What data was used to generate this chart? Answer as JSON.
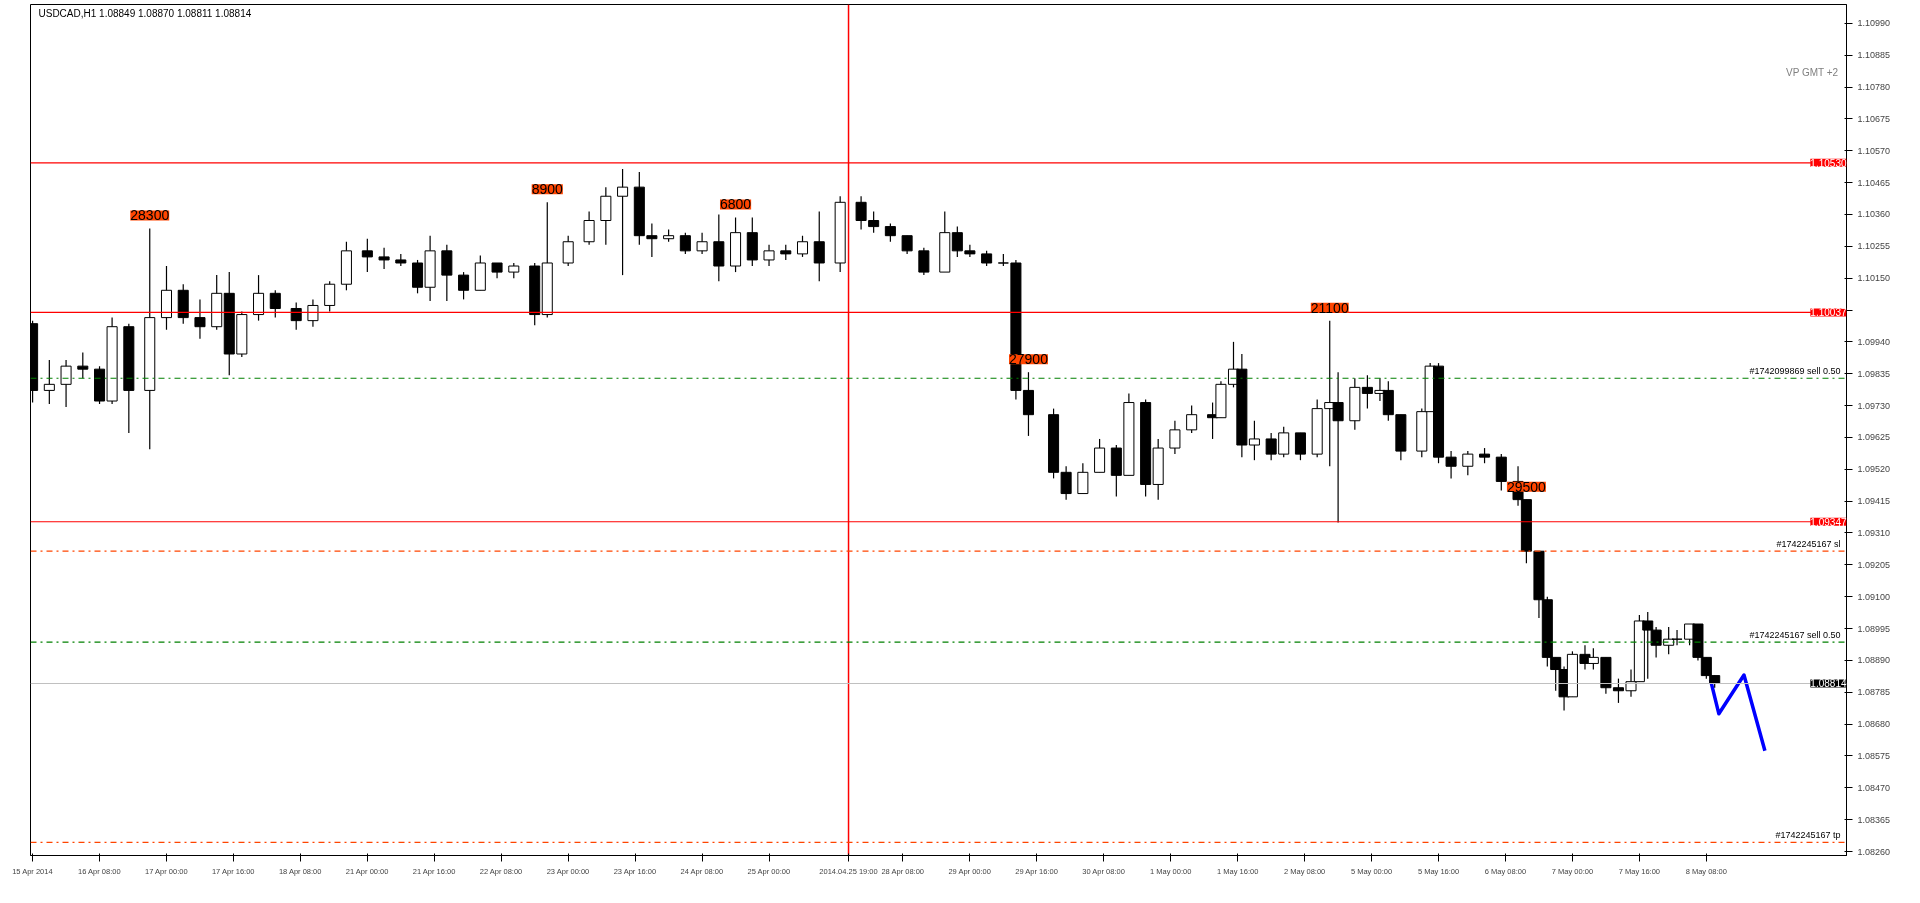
{
  "chart_data": {
    "type": "candlestick",
    "title": "USDCAD,H1  1.08849 1.08870 1.08811 1.08814",
    "categories": [
      "15 Apr 2014",
      null,
      null,
      null,
      null,
      null,
      null,
      null,
      null,
      null,
      null,
      null,
      null,
      null,
      null,
      null,
      "16 Apr 08:00",
      null,
      null,
      null,
      null,
      null,
      null,
      null,
      null,
      null,
      null,
      null,
      null,
      null,
      null,
      null,
      "17 Apr 00:00",
      null,
      null,
      null,
      null,
      null,
      null,
      null,
      null,
      null,
      null,
      null,
      null,
      null,
      null,
      null,
      "17 Apr 16:00",
      null,
      null,
      null,
      null,
      null,
      null,
      null,
      null,
      null,
      null,
      null,
      null,
      null,
      null,
      null,
      "18 Apr 08:00",
      null,
      null,
      null,
      null,
      null,
      null,
      null,
      null,
      null,
      null,
      null,
      null,
      null,
      null,
      null,
      "21 Apr 00:00",
      null,
      null,
      null,
      null,
      null,
      null,
      null,
      null,
      null,
      null,
      null,
      null,
      null,
      null,
      null,
      "21 Apr 16:00",
      null,
      null,
      null,
      null,
      null,
      null,
      null,
      null,
      null,
      null,
      null,
      null,
      null,
      null,
      null,
      "22 Apr 08:00",
      null,
      null,
      null,
      null,
      null,
      null,
      null,
      null,
      null,
      null,
      null,
      null,
      null,
      null,
      null,
      "23 Apr 00:00",
      null,
      null,
      null,
      null,
      null,
      null,
      null,
      null,
      null,
      null,
      null,
      null,
      null,
      null,
      null,
      "23 Apr 16:00",
      null,
      null,
      null,
      null,
      null,
      null,
      null,
      null,
      null,
      null,
      null,
      null,
      null,
      null,
      null,
      "24 Apr 08:00",
      null,
      null,
      null,
      null,
      null,
      null,
      null,
      null,
      null,
      null,
      null,
      null,
      null,
      null,
      null,
      "25 Apr 00:00",
      null,
      null,
      null,
      null,
      null,
      null,
      null,
      null,
      null,
      null,
      null,
      null,
      null,
      null,
      null,
      null,
      null,
      null,
      "2014.04.25 19:00",
      null,
      null,
      null,
      null,
      null,
      null,
      null,
      null,
      null,
      null,
      null,
      null,
      "28 Apr 08:00",
      null,
      null,
      null,
      null,
      null,
      null,
      null,
      null,
      null,
      null,
      null,
      null,
      null,
      null,
      null,
      "29 Apr 00:00",
      null,
      null,
      null,
      null,
      null,
      null,
      null,
      null,
      null,
      null,
      null,
      null,
      null,
      null,
      null,
      "29 Apr 16:00",
      null,
      null,
      null,
      null,
      null,
      null,
      null,
      null,
      null,
      null,
      null,
      null,
      null,
      null,
      null,
      "30 Apr 08:00",
      null,
      null,
      null,
      null,
      null,
      null,
      null,
      null,
      null,
      null,
      null,
      null,
      null,
      null,
      null,
      "1 May 00:00",
      null,
      null,
      null,
      null,
      null,
      null,
      null,
      null,
      null,
      null,
      null,
      null,
      null,
      null,
      null,
      "1 May 16:00",
      null,
      null,
      null,
      null,
      null,
      null,
      null,
      null,
      null,
      null,
      null,
      null,
      null,
      null,
      null,
      "2 May 08:00",
      null,
      null,
      null,
      null,
      null,
      null,
      null,
      null,
      null,
      null,
      null,
      null,
      null,
      null,
      null,
      "5 May 00:00",
      null,
      null,
      null,
      null,
      null,
      null,
      null,
      null,
      null,
      null,
      null,
      null,
      null,
      null,
      null,
      "5 May 16:00",
      null,
      null,
      null,
      null,
      null,
      null,
      null,
      null,
      null,
      null,
      null,
      null,
      null,
      null,
      null,
      "6 May 08:00",
      null,
      null,
      null,
      null,
      null,
      null,
      null,
      null,
      null,
      null,
      null,
      null,
      null,
      null,
      null,
      "7 May 00:00",
      null,
      null,
      null,
      null,
      null,
      null,
      null,
      null,
      null,
      null,
      null,
      null,
      null,
      null,
      null,
      "7 May 16:00",
      null,
      null,
      null,
      null,
      null,
      null,
      null,
      null,
      null,
      null,
      null,
      null,
      null,
      null,
      null,
      "8 May 08:00",
      null,
      null,
      null,
      null,
      null,
      null,
      null,
      null,
      null,
      null,
      null,
      null,
      null,
      null,
      null,
      null,
      null,
      null,
      null,
      null,
      null,
      null,
      null,
      null,
      null,
      null,
      null,
      null,
      null,
      null,
      null,
      null,
      null
    ],
    "ohlc": [
      [
        1.1,
        1.1001,
        1.0974,
        1.0978
      ],
      null,
      null,
      null,
      [
        1.0978,
        1.0988,
        1.09735,
        1.098
      ],
      null,
      null,
      null,
      [
        1.098,
        1.0988,
        1.09725,
        1.0986
      ],
      null,
      null,
      null,
      [
        1.0986,
        1.09905,
        1.0982,
        1.0985
      ],
      null,
      null,
      null,
      [
        1.0985,
        1.0986,
        1.09735,
        1.09745
      ],
      null,
      null,
      [
        1.09745,
        1.1002,
        1.09735,
        1.0999
      ],
      null,
      null,
      null,
      [
        1.0999,
        1.1,
        1.0964,
        1.0978
      ],
      null,
      null,
      null,
      null,
      [
        1.0978,
        1.10314,
        1.09586,
        1.1002
      ],
      null,
      null,
      null,
      [
        1.1002,
        1.1019,
        1.0998,
        1.1011
      ],
      null,
      null,
      null,
      [
        1.1011,
        1.1013,
        1.1,
        1.1002
      ],
      null,
      null,
      null,
      [
        1.1002,
        1.1008,
        1.0995,
        1.0999
      ],
      null,
      null,
      null,
      [
        1.0999,
        1.1016,
        1.0998,
        1.101
      ],
      null,
      null,
      [
        1.101,
        1.1017,
        1.0983,
        1.099
      ],
      null,
      null,
      [
        1.099,
        1.1004,
        1.0989,
        1.1003
      ],
      null,
      null,
      null,
      [
        1.1003,
        1.1016,
        1.1001,
        1.101
      ],
      null,
      null,
      null,
      [
        1.101,
        1.1011,
        1.1002,
        1.1005
      ],
      null,
      null,
      null,
      null,
      [
        1.1005,
        1.1007,
        1.0998,
        1.1001
      ],
      null,
      null,
      null,
      [
        1.1001,
        1.1008,
        1.0999,
        1.1006
      ],
      null,
      null,
      null,
      [
        1.1006,
        1.1014,
        1.1004,
        1.1013
      ],
      null,
      null,
      null,
      [
        1.1013,
        1.1027,
        1.1011,
        1.1024
      ],
      null,
      null,
      null,
      null,
      [
        1.1024,
        1.1028,
        1.1017,
        1.1022
      ],
      null,
      null,
      null,
      [
        1.1022,
        1.1025,
        1.1018,
        1.1021
      ],
      null,
      null,
      null,
      [
        1.1021,
        1.1023,
        1.1019,
        1.102
      ],
      null,
      null,
      null,
      [
        1.102,
        1.1021,
        1.101,
        1.1012
      ],
      null,
      null,
      [
        1.1012,
        1.1029,
        1.10075,
        1.1024
      ],
      null,
      null,
      null,
      [
        1.1024,
        1.1026,
        1.10075,
        1.1016
      ],
      null,
      null,
      null,
      [
        1.1016,
        1.1017,
        1.1008,
        1.1011
      ],
      null,
      null,
      null,
      [
        1.1011,
        1.10225,
        1.1011,
        1.102
      ],
      null,
      null,
      null,
      [
        1.102,
        1.102,
        1.1015,
        1.1017
      ],
      null,
      null,
      null,
      [
        1.1017,
        1.102,
        1.1015,
        1.1019
      ],
      null,
      null,
      null,
      null,
      [
        1.1019,
        1.102,
        1.09995,
        1.1003
      ],
      null,
      null,
      [
        1.1003,
        1.104,
        1.1002,
        1.102
      ],
      null,
      null,
      null,
      null,
      [
        1.102,
        1.1029,
        1.1019,
        1.1027
      ],
      null,
      null,
      null,
      null,
      [
        1.1027,
        1.1037,
        1.1026,
        1.1034
      ],
      null,
      null,
      null,
      [
        1.1034,
        1.1045,
        1.1026,
        1.1042
      ],
      null,
      null,
      null,
      [
        1.1042,
        1.1051,
        1.1016,
        1.1045
      ],
      null,
      null,
      null,
      [
        1.1045,
        1.105,
        1.1026,
        1.1029
      ],
      null,
      null,
      [
        1.1029,
        1.1033,
        1.1022,
        1.1028
      ],
      null,
      null,
      null,
      [
        1.1028,
        1.1031,
        1.1027,
        1.1029
      ],
      null,
      null,
      null,
      [
        1.1029,
        1.103,
        1.1023,
        1.1024
      ],
      null,
      null,
      null,
      [
        1.1024,
        1.103,
        1.1023,
        1.1027
      ],
      null,
      null,
      null,
      [
        1.1027,
        1.1036,
        1.1014,
        1.1019
      ],
      null,
      null,
      null,
      [
        1.1019,
        1.1035,
        1.1017,
        1.103
      ],
      null,
      null,
      null,
      [
        1.103,
        1.1035,
        1.1019,
        1.1021
      ],
      null,
      null,
      null,
      [
        1.1021,
        1.1026,
        1.1019,
        1.1024
      ],
      null,
      null,
      null,
      [
        1.1024,
        1.1026,
        1.1021,
        1.1023
      ],
      null,
      null,
      null,
      [
        1.1023,
        1.1029,
        1.1022,
        1.1027
      ],
      null,
      null,
      null,
      [
        1.1027,
        1.1037,
        1.1014,
        1.102
      ],
      null,
      null,
      null,
      null,
      [
        1.102,
        1.1042,
        1.1017,
        1.104
      ],
      null,
      null,
      null,
      null,
      [
        1.104,
        1.1042,
        1.1031,
        1.1034
      ],
      null,
      null,
      [
        1.1034,
        1.1037,
        1.103,
        1.1032
      ],
      null,
      null,
      null,
      [
        1.1032,
        1.1033,
        1.1027,
        1.1029
      ],
      null,
      null,
      null,
      [
        1.1029,
        1.1029,
        1.1023,
        1.1024
      ],
      null,
      null,
      null,
      [
        1.1024,
        1.1025,
        1.1016,
        1.1017
      ],
      null,
      null,
      null,
      null,
      [
        1.1017,
        1.1037,
        1.1017,
        1.103
      ],
      null,
      null,
      [
        1.103,
        1.1032,
        1.1022,
        1.1024
      ],
      null,
      null,
      [
        1.1024,
        1.1026,
        1.1022,
        1.1023
      ],
      null,
      null,
      null,
      [
        1.1023,
        1.1024,
        1.1019,
        1.102
      ],
      null,
      null,
      null,
      [
        1.102,
        1.1023,
        1.1019,
        1.102
      ],
      null,
      null,
      [
        1.102,
        1.1021,
        1.0975,
        1.0978
      ],
      null,
      null,
      [
        1.0978,
        1.0984,
        1.0963,
        1.097
      ],
      null,
      null,
      null,
      null,
      null,
      [
        1.097,
        1.0972,
        1.0949,
        1.0951
      ],
      null,
      null,
      [
        1.0951,
        1.0953,
        1.0942,
        1.0944
      ],
      null,
      null,
      null,
      [
        1.0944,
        1.0954,
        1.0944,
        1.0951
      ],
      null,
      null,
      null,
      [
        1.0951,
        1.0962,
        1.0951,
        1.0959
      ],
      null,
      null,
      null,
      [
        1.0959,
        1.096,
        1.0943,
        1.095
      ],
      null,
      null,
      [
        1.095,
        1.0977,
        1.095,
        1.0974
      ],
      null,
      null,
      null,
      [
        1.0974,
        1.0975,
        1.0943,
        1.0947
      ],
      null,
      null,
      [
        1.0947,
        1.0962,
        1.0942,
        1.0959
      ],
      null,
      null,
      null,
      [
        1.0959,
        1.0968,
        1.0957,
        1.0965
      ],
      null,
      null,
      null,
      [
        1.0965,
        1.0973,
        1.0964,
        1.097
      ],
      null,
      null,
      null,
      null,
      [
        1.097,
        1.0974,
        1.0962,
        1.0969
      ],
      null,
      [
        1.0969,
        1.0981,
        1.0969,
        1.098
      ],
      null,
      null,
      [
        1.098,
        1.0994,
        1.0979,
        1.0985
      ],
      null,
      [
        1.0985,
        1.099,
        1.0956,
        1.096
      ],
      null,
      null,
      [
        1.096,
        1.0968,
        1.0955,
        1.0962
      ],
      null,
      null,
      null,
      [
        1.0962,
        1.0964,
        1.0955,
        1.0957
      ],
      null,
      null,
      [
        1.0957,
        1.0966,
        1.0956,
        1.0964
      ],
      null,
      null,
      null,
      [
        1.0964,
        1.0964,
        1.0955,
        1.0957
      ],
      null,
      null,
      null,
      [
        1.0957,
        1.0975,
        1.0956,
        1.0972
      ],
      null,
      null,
      [
        1.0972,
        1.1001,
        1.0953,
        1.0974
      ],
      null,
      [
        1.0974,
        1.0984,
        1.09345,
        1.0968
      ],
      null,
      null,
      null,
      [
        1.0968,
        1.0982,
        1.0965,
        1.0979
      ],
      null,
      null,
      [
        1.0979,
        1.0983,
        1.0972,
        1.0977
      ],
      null,
      null,
      [
        1.0977,
        1.0982,
        1.09745,
        1.0978
      ],
      null,
      [
        1.0978,
        1.0981,
        1.0968,
        1.097
      ],
      null,
      null,
      [
        1.097,
        1.097,
        1.0955,
        1.0958
      ],
      null,
      null,
      null,
      null,
      [
        1.0958,
        1.0972,
        1.0956,
        1.0971
      ],
      null,
      [
        1.0971,
        1.0987,
        1.0971,
        1.0986
      ],
      null,
      [
        1.0986,
        1.0987,
        1.0954,
        1.0956
      ],
      null,
      null,
      [
        1.0956,
        1.0958,
        1.0949,
        1.0953
      ],
      null,
      null,
      null,
      [
        1.0953,
        1.0958,
        1.095,
        1.0957
      ],
      null,
      null,
      null,
      [
        1.0957,
        1.0959,
        1.0954,
        1.0956
      ],
      null,
      null,
      null,
      [
        1.0956,
        1.0957,
        1.0945,
        1.0948
      ],
      null,
      null,
      null,
      [
        1.0948,
        1.0953,
        1.094,
        1.0942
      ],
      null,
      [
        1.0942,
        1.0942,
        1.0921,
        1.0925
      ],
      null,
      null,
      [
        1.0925,
        1.0925,
        1.0903,
        1.0909
      ],
      null,
      [
        1.0909,
        1.091,
        1.0887,
        1.089
      ],
      null,
      [
        1.089,
        1.089,
        1.0879,
        1.0886
      ],
      null,
      [
        1.0886,
        1.0887,
        1.08725,
        1.0877
      ],
      null,
      [
        1.0877,
        1.0892,
        1.0877,
        1.0891
      ],
      null,
      null,
      [
        1.0891,
        1.0894,
        1.0886,
        1.0888
      ],
      null,
      [
        1.0888,
        1.0893,
        1.0886,
        1.089
      ],
      null,
      null,
      [
        1.089,
        1.089,
        1.0878,
        1.088
      ],
      null,
      null,
      [
        1.088,
        1.0883,
        1.0875,
        1.0879
      ],
      null,
      null,
      [
        1.0879,
        1.0886,
        1.0877,
        1.0882
      ],
      null,
      [
        1.0882,
        1.0904,
        1.0882,
        1.0902
      ],
      null,
      [
        1.0902,
        1.0905,
        1.0883,
        1.0899
      ],
      null,
      [
        1.0899,
        1.09,
        1.089,
        1.0894
      ],
      null,
      null,
      [
        1.0894,
        1.09,
        1.0891,
        1.0896
      ],
      null,
      [
        1.0896,
        1.0899,
        1.0894,
        1.0896
      ],
      null,
      null,
      [
        1.0896,
        1.0901,
        1.0894,
        1.0901
      ],
      null,
      [
        1.0901,
        1.0901,
        1.0889,
        1.089
      ],
      null,
      [
        1.089,
        1.089,
        1.0883,
        1.0884
      ],
      null,
      [
        1.0884,
        1.0884,
        1.088,
        1.08814
      ],
      null,
      null,
      null,
      null,
      null,
      null,
      null,
      null,
      null,
      null,
      null,
      null,
      null,
      null,
      null,
      null,
      null,
      null,
      null,
      null,
      null,
      null,
      null,
      null,
      null,
      null,
      null,
      null,
      null,
      null,
      null
    ],
    "value_labels": [
      null,
      null,
      null,
      null,
      null,
      null,
      null,
      null,
      null,
      null,
      null,
      null,
      null,
      null,
      null,
      null,
      null,
      null,
      null,
      null,
      null,
      null,
      null,
      null,
      null,
      null,
      null,
      null,
      "28300",
      null,
      null,
      null,
      null,
      null,
      null,
      null,
      null,
      null,
      null,
      null,
      null,
      null,
      null,
      null,
      null,
      null,
      null,
      null,
      null,
      null,
      null,
      null,
      null,
      null,
      null,
      null,
      null,
      null,
      null,
      null,
      null,
      null,
      null,
      null,
      null,
      null,
      null,
      null,
      null,
      null,
      null,
      null,
      null,
      null,
      null,
      null,
      null,
      null,
      null,
      null,
      null,
      null,
      null,
      null,
      null,
      null,
      null,
      null,
      null,
      null,
      null,
      null,
      null,
      null,
      null,
      null,
      null,
      null,
      null,
      null,
      null,
      null,
      null,
      null,
      null,
      null,
      null,
      null,
      null,
      null,
      null,
      null,
      null,
      null,
      null,
      null,
      null,
      null,
      null,
      null,
      null,
      null,
      null,
      "8900",
      null,
      null,
      null,
      null,
      null,
      null,
      null,
      null,
      null,
      null,
      null,
      null,
      null,
      null,
      null,
      null,
      null,
      null,
      null,
      null,
      null,
      null,
      null,
      null,
      null,
      null,
      null,
      null,
      null,
      null,
      null,
      null,
      null,
      null,
      null,
      null,
      null,
      null,
      null,
      null,
      null,
      null,
      null,
      null,
      "6800",
      null,
      null,
      null,
      null,
      null,
      null,
      null,
      null,
      null,
      null,
      null,
      null,
      null,
      null,
      null,
      null,
      null,
      null,
      null,
      null,
      null,
      null,
      null,
      null,
      null,
      null,
      null,
      null,
      null,
      null,
      null,
      null,
      null,
      null,
      null,
      null,
      null,
      null,
      null,
      null,
      null,
      null,
      null,
      null,
      null,
      null,
      null,
      null,
      null,
      null,
      null,
      null,
      null,
      null,
      null,
      null,
      null,
      null,
      null,
      null,
      null,
      null,
      null,
      null,
      null,
      null,
      null,
      null,
      null,
      "27900",
      null,
      null,
      null,
      null,
      null,
      null,
      null,
      null,
      null,
      null,
      null,
      null,
      null,
      null,
      null,
      null,
      null,
      null,
      null,
      null,
      null,
      null,
      null,
      null,
      null,
      null,
      null,
      null,
      null,
      null,
      null,
      null,
      null,
      null,
      null,
      null,
      null,
      null,
      null,
      null,
      null,
      null,
      null,
      null,
      null,
      null,
      null,
      null,
      null,
      null,
      null,
      null,
      null,
      null,
      null,
      null,
      null,
      null,
      null,
      null,
      null,
      null,
      null,
      null,
      null,
      null,
      null,
      null,
      null,
      null,
      null,
      "21100",
      null,
      null,
      null,
      null,
      null,
      null,
      null,
      null,
      null,
      null,
      null,
      null,
      null,
      null,
      null,
      null,
      null,
      null,
      null,
      null,
      null,
      null,
      null,
      null,
      null,
      null,
      null,
      null,
      null,
      null,
      null,
      null,
      null,
      null,
      null,
      null,
      null,
      null,
      null,
      null,
      null,
      null,
      null,
      null,
      null,
      null,
      "29500",
      null,
      null,
      null,
      null,
      null,
      null,
      null,
      null,
      null,
      null,
      null,
      null,
      null,
      null,
      null,
      null,
      null,
      null,
      null,
      null,
      null,
      null,
      null,
      null,
      null,
      null,
      null,
      null,
      null,
      null,
      null,
      null,
      null,
      null,
      null,
      null,
      null,
      null,
      null,
      null,
      null,
      null,
      null,
      null,
      null,
      null,
      null,
      null,
      null,
      null,
      null,
      null,
      null,
      null,
      null,
      null,
      null,
      null,
      null,
      null,
      null,
      null,
      null,
      null,
      null,
      null,
      null,
      null,
      null,
      null,
      null,
      null,
      null,
      null,
      null,
      null
    ],
    "series": [
      {
        "type": "line",
        "color": "#0000ff",
        "values": [
          null,
          null,
          null,
          null,
          null,
          null,
          null,
          null,
          null,
          null,
          null,
          null,
          null,
          null,
          null,
          null,
          null,
          null,
          null,
          null,
          null,
          null,
          null,
          null,
          null,
          null,
          null,
          null,
          null,
          null,
          null,
          null,
          null,
          null,
          null,
          null,
          null,
          null,
          null,
          null,
          null,
          null,
          null,
          null,
          null,
          null,
          null,
          null,
          null,
          null,
          null,
          null,
          null,
          null,
          null,
          null,
          null,
          null,
          null,
          null,
          null,
          null,
          null,
          null,
          null,
          null,
          null,
          null,
          null,
          null,
          null,
          null,
          null,
          null,
          null,
          null,
          null,
          null,
          null,
          null,
          null,
          null,
          null,
          null,
          null,
          null,
          null,
          null,
          null,
          null,
          null,
          null,
          null,
          null,
          null,
          null,
          null,
          null,
          null,
          null,
          null,
          null,
          null,
          null,
          null,
          null,
          null,
          null,
          null,
          null,
          null,
          null,
          null,
          null,
          null,
          null,
          null,
          null,
          null,
          null,
          null,
          null,
          null,
          null,
          null,
          null,
          null,
          null,
          null,
          null,
          null,
          null,
          null,
          null,
          null,
          null,
          null,
          null,
          null,
          null,
          null,
          null,
          null,
          null,
          null,
          null,
          null,
          null,
          null,
          null,
          null,
          null,
          null,
          null,
          null,
          null,
          null,
          null,
          null,
          null,
          null,
          null,
          null,
          null,
          null,
          null,
          null,
          null,
          null,
          null,
          null,
          null,
          null,
          null,
          null,
          null,
          null,
          null,
          null,
          null,
          null,
          null,
          null,
          null,
          null,
          null,
          null,
          null,
          null,
          null,
          null,
          null,
          null,
          null,
          null,
          null,
          null,
          null,
          null,
          null,
          null,
          null,
          null,
          null,
          null,
          null,
          null,
          null,
          null,
          null,
          null,
          null,
          null,
          null,
          null,
          null,
          null,
          null,
          null,
          null,
          null,
          null,
          null,
          null,
          null,
          null,
          null,
          null,
          null,
          null,
          null,
          null,
          null,
          null,
          null,
          null,
          null,
          null,
          null,
          null,
          null,
          null,
          null,
          null,
          null,
          null,
          null,
          null,
          null,
          null,
          null,
          null,
          null,
          null,
          null,
          null,
          null,
          null,
          null,
          null,
          null,
          null,
          null,
          null,
          null,
          null,
          null,
          null,
          null,
          null,
          null,
          null,
          null,
          null,
          null,
          null,
          null,
          null,
          null,
          null,
          null,
          null,
          null,
          null,
          null,
          null,
          null,
          null,
          null,
          null,
          null,
          null,
          null,
          null,
          null,
          null,
          null,
          null,
          null,
          null,
          null,
          null,
          null,
          null,
          null,
          null,
          null,
          null,
          null,
          null,
          null,
          null,
          null,
          null,
          null,
          null,
          null,
          null,
          null,
          null,
          null,
          null,
          null,
          null,
          null,
          null,
          null,
          null,
          null,
          null,
          null,
          null,
          null,
          null,
          null,
          null,
          null,
          null,
          null,
          null,
          null,
          null,
          null,
          null,
          null,
          null,
          null,
          null,
          null,
          null,
          null,
          null,
          null,
          null,
          null,
          null,
          null,
          null,
          null,
          null,
          null,
          null,
          null,
          null,
          null,
          null,
          null,
          null,
          null,
          null,
          null,
          null,
          null,
          null,
          null,
          null,
          null,
          null,
          null,
          null,
          null,
          null,
          null,
          null,
          null,
          null,
          null,
          null,
          null,
          null,
          null,
          null,
          null,
          null,
          null,
          null,
          null,
          null,
          null,
          null,
          null,
          1.08826,
          null,
          1.08714,
          null,
          null,
          null,
          null,
          null,
          1.08842,
          null,
          null,
          null,
          null,
          1.08592,
          null,
          null,
          null,
          null,
          null,
          null,
          null,
          null,
          null,
          null,
          null,
          null,
          null,
          null,
          null,
          null,
          null,
          null,
          null
        ]
      }
    ],
    "ylim": [
      1.08247,
      1.11052
    ],
    "yticks": [
      {
        "value": 1.0826,
        "label": "1.08260"
      },
      {
        "value": 1.08365,
        "label": "1.08365"
      },
      {
        "value": 1.0847,
        "label": "1.08470"
      },
      {
        "value": 1.08575,
        "label": "1.08575"
      },
      {
        "value": 1.0868,
        "label": "1.08680"
      },
      {
        "value": 1.08785,
        "label": "1.08785"
      },
      {
        "value": 1.0889,
        "label": "1.08890"
      },
      {
        "value": 1.08995,
        "label": "1.08995"
      },
      {
        "value": 1.091,
        "label": "1.09100"
      },
      {
        "value": 1.09205,
        "label": "1.09205"
      },
      {
        "value": 1.0931,
        "label": "1.09310"
      },
      {
        "value": 1.09415,
        "label": "1.09415"
      },
      {
        "value": 1.0952,
        "label": "1.09520"
      },
      {
        "value": 1.09625,
        "label": "1.09625"
      },
      {
        "value": 1.0973,
        "label": "1.09730"
      },
      {
        "value": 1.09835,
        "label": "1.09835"
      },
      {
        "value": 1.0994,
        "label": "1.09940"
      },
      {
        "value": 1.10045,
        "label": null
      },
      {
        "value": 1.1015,
        "label": "1.10150"
      },
      {
        "value": 1.10255,
        "label": "1.10255"
      },
      {
        "value": 1.1036,
        "label": "1.10360"
      },
      {
        "value": 1.10465,
        "label": "1.10465"
      },
      {
        "value": 1.1057,
        "label": "1.10570"
      },
      {
        "value": 1.10675,
        "label": "1.10675"
      },
      {
        "value": 1.1078,
        "label": "1.10780"
      },
      {
        "value": 1.10885,
        "label": "1.10885"
      },
      {
        "value": 1.1099,
        "label": "1.10990"
      }
    ],
    "ref_lines": [
      {
        "axis": "y",
        "value": 1.1053,
        "label": "1.10530",
        "color": "#ff0000",
        "line_style": "solid"
      },
      {
        "axis": "y",
        "value": 1.10037,
        "label": "1.10037",
        "color": "#ff0000",
        "line_style": "solid"
      },
      {
        "axis": "y",
        "value": 1.09347,
        "label": "1.09347",
        "color": "#ff0000",
        "line_style": "solid"
      },
      {
        "axis": "y",
        "value": 1.08814,
        "label": "1.08814",
        "color": "#c0c0c0",
        "line_style": "solid"
      },
      {
        "axis": "y",
        "value": 1.0982,
        "label": "#1742099869 sell 0.50",
        "color": "#008000",
        "line_style": "dashdot"
      },
      {
        "axis": "y",
        "value": 1.0895,
        "label": "#1742245167 sell 0.50",
        "color": "#008000",
        "line_style": "dashdot"
      },
      {
        "axis": "y",
        "value": 1.0925,
        "label": "#1742245167 sl",
        "color": "#ff4500",
        "line_style": "dashdot"
      },
      {
        "axis": "y",
        "value": 1.0829,
        "label": "#1742245167 tp",
        "color": "#ff4500",
        "line_style": "dashdot"
      },
      {
        "axis": "x",
        "value": "2014.04.25 19:00",
        "color": "#ff0000",
        "line_style": "solid"
      }
    ],
    "annotations": [
      "VP GMT +2"
    ],
    "grid": false
  }
}
